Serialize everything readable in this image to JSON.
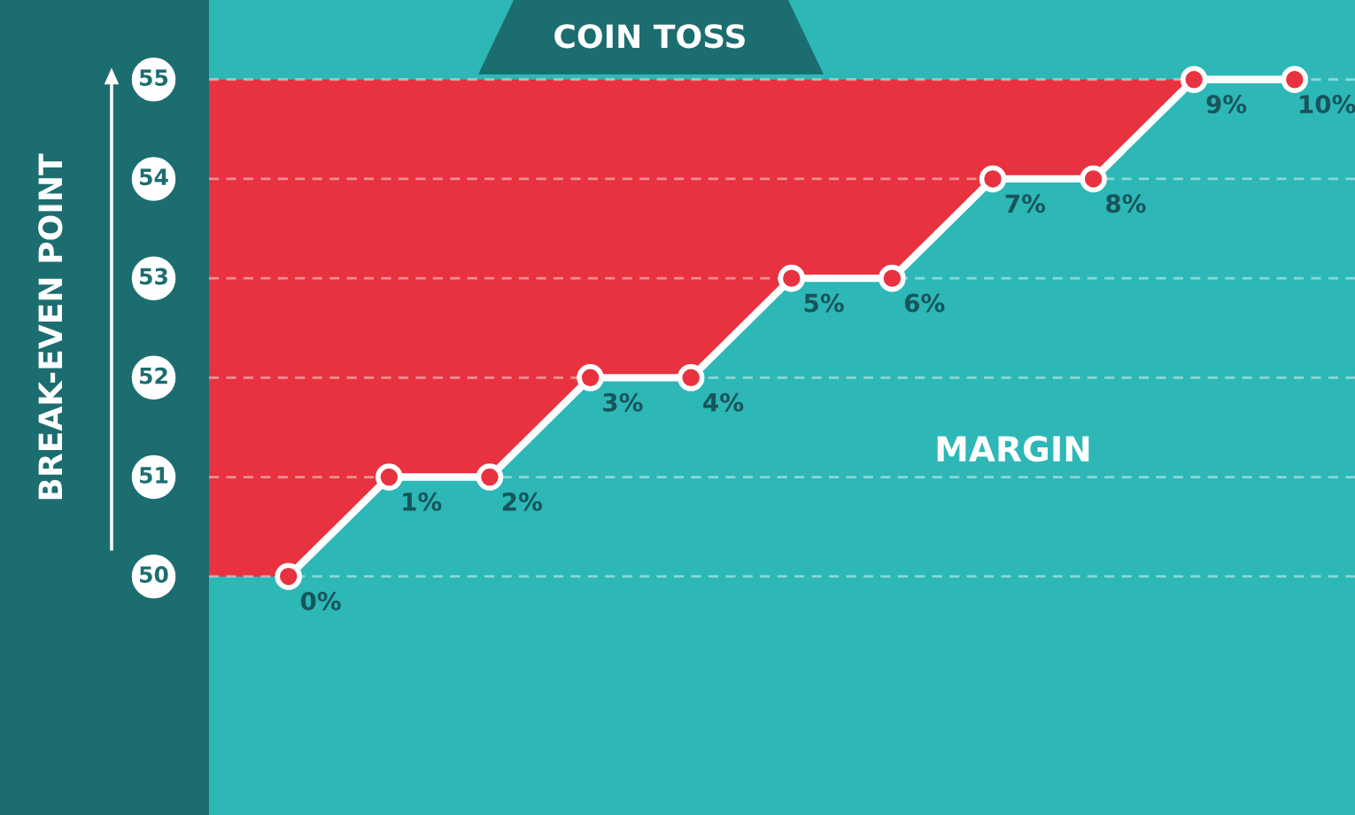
{
  "chart_data": {
    "type": "line",
    "title": "COIN TOSS",
    "ylabel": "BREAK-EVEN POINT",
    "annotations": [
      "MARGIN"
    ],
    "categories": [
      "0%",
      "1%",
      "2%",
      "3%",
      "4%",
      "5%",
      "6%",
      "7%",
      "8%",
      "9%",
      "10%"
    ],
    "series": [
      {
        "color": "#ffffff",
        "values": [
          50,
          51,
          51,
          52,
          52,
          53,
          53,
          54,
          54,
          55,
          55
        ]
      }
    ],
    "ylim": [
      47.6,
      55.8
    ],
    "yticks": [
      50,
      51,
      52,
      53,
      54,
      55
    ],
    "grid": "y",
    "marker": "circle",
    "line_style": "solid",
    "legend": false
  }
}
